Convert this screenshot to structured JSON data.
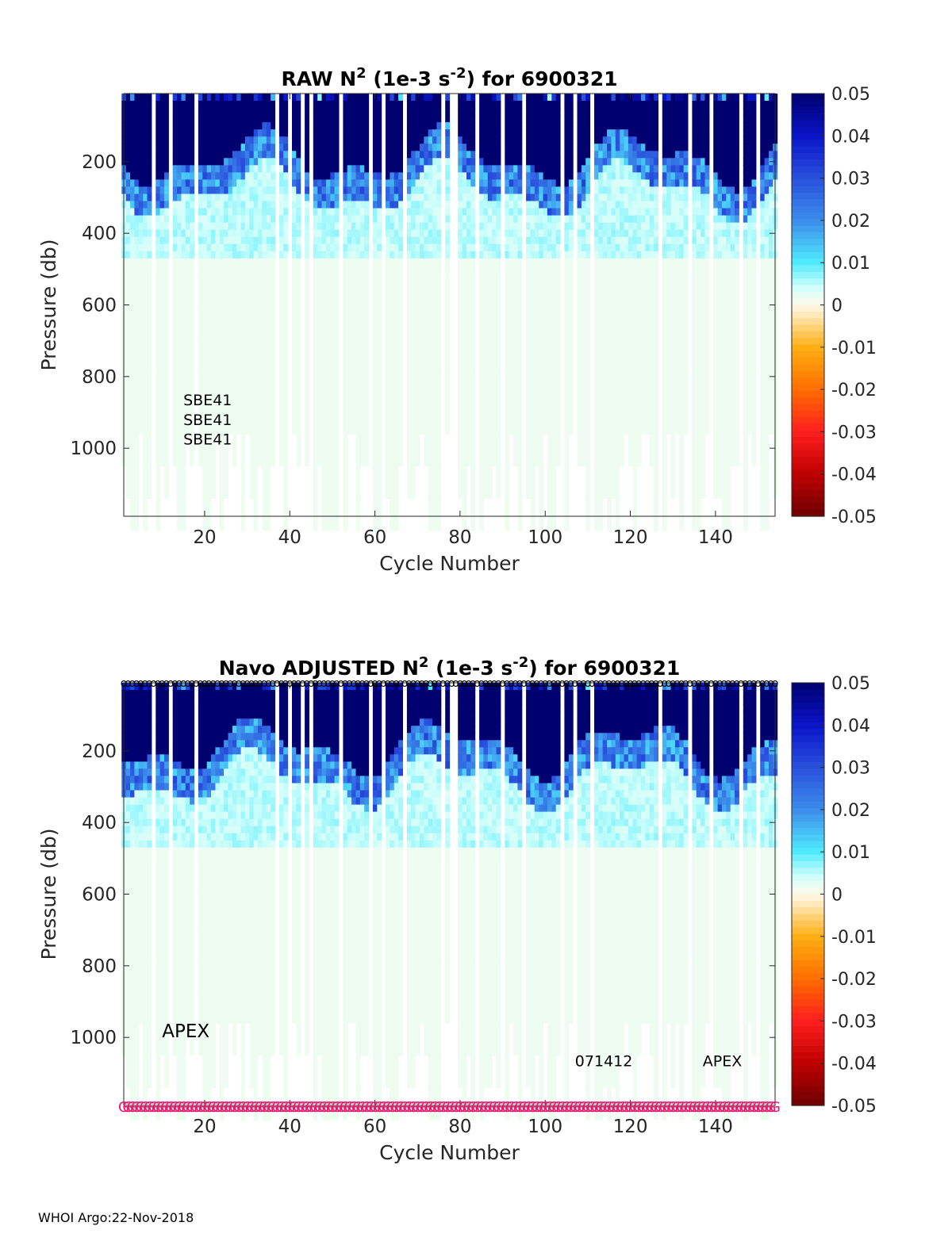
{
  "footer": "WHOI Argo:22-Nov-2018",
  "chart_data": [
    {
      "type": "heatmap",
      "title": "RAW N² (1e-3 s⁻²) for 6900321",
      "title_parts": {
        "pre": "RAW N",
        "sup1": "2",
        "mid": " (1e-3 s",
        "sup2": "-2",
        "post": ") for 6900321"
      },
      "xlabel": "Cycle Number",
      "ylabel": "Pressure (db)",
      "xlim": [
        1,
        154
      ],
      "ylim": [
        1190,
        10
      ],
      "xticks": [
        20,
        40,
        60,
        80,
        100,
        120,
        140
      ],
      "yticks": [
        200,
        400,
        600,
        800,
        1000
      ],
      "colorbar": {
        "ticks": [
          "0.05",
          "0.04",
          "0.03",
          "0.02",
          "0.01",
          "0",
          "-0.01",
          "-0.02",
          "-0.03",
          "-0.04",
          "-0.05"
        ],
        "range": [
          -0.05,
          0.05
        ],
        "colormap": "diverging-blue-red"
      },
      "annotations": [
        {
          "text": "SBE41",
          "x": 15,
          "y": 880
        },
        {
          "text": "SBE41",
          "x": 15,
          "y": 935
        },
        {
          "text": "SBE41",
          "x": 15,
          "y": 990
        }
      ],
      "summary_profile": {
        "pressure": [
          10,
          100,
          200,
          260,
          320,
          400,
          460,
          600,
          1000,
          1190
        ],
        "n2_typical": [
          0.045,
          0.05,
          0.04,
          0.02,
          0.012,
          0.006,
          0.004,
          0.002,
          0.001,
          0.001
        ]
      }
    },
    {
      "type": "heatmap",
      "title": "Navo ADJUSTED N² (1e-3 s⁻²) for 6900321",
      "title_parts": {
        "pre": "Navo  ADJUSTED N",
        "sup1": "2",
        "mid": " (1e-3 s",
        "sup2": "-2",
        "post": ") for 6900321"
      },
      "xlabel": "Cycle Number",
      "ylabel": "Pressure (db)",
      "xlim": [
        1,
        154
      ],
      "ylim": [
        1190,
        10
      ],
      "xticks": [
        20,
        40,
        60,
        80,
        100,
        120,
        140
      ],
      "yticks": [
        200,
        400,
        600,
        800,
        1000
      ],
      "colorbar": {
        "ticks": [
          "0.05",
          "0.04",
          "0.03",
          "0.02",
          "0.01",
          "0",
          "-0.01",
          "-0.02",
          "-0.03",
          "-0.04",
          "-0.05"
        ],
        "range": [
          -0.05,
          0.05
        ],
        "colormap": "diverging-blue-red"
      },
      "annotations": [
        {
          "text": "APEX",
          "x": 10,
          "y": 1000
        },
        {
          "text": "071412",
          "x": 107,
          "y": 1080
        },
        {
          "text": "APEX",
          "x": 137,
          "y": 1080
        }
      ],
      "top_marker": {
        "text": "o",
        "color": "#000000"
      },
      "bottom_marker": {
        "text": "G",
        "color": "#e8196c"
      },
      "summary_profile": {
        "pressure": [
          10,
          100,
          200,
          260,
          320,
          400,
          460,
          600,
          1000,
          1190
        ],
        "n2_typical": [
          0.045,
          0.05,
          0.04,
          0.02,
          0.012,
          0.006,
          0.004,
          0.002,
          0.001,
          0.001
        ]
      }
    }
  ]
}
